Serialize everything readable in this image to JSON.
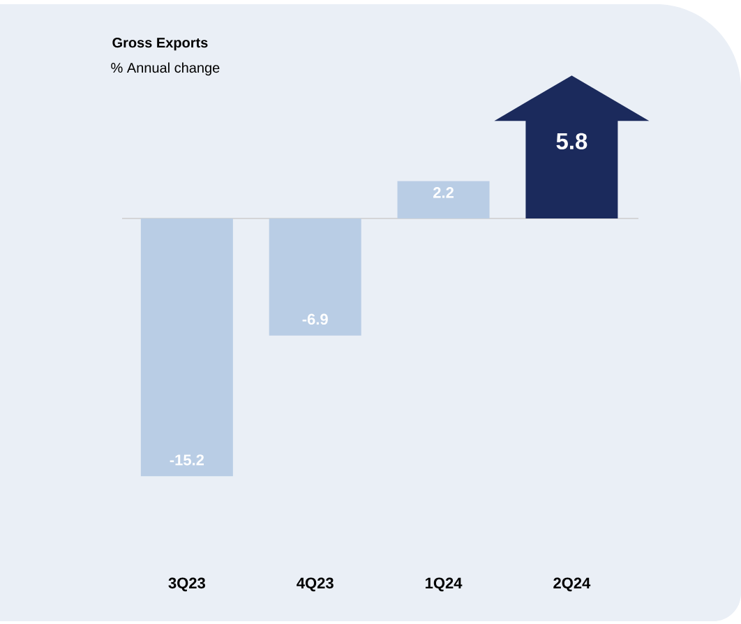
{
  "chart_data": {
    "type": "bar",
    "title": "Gross Exports",
    "subtitle": "% Annual change",
    "categories": [
      "3Q23",
      "4Q23",
      "1Q24",
      "2Q24"
    ],
    "values": [
      -15.2,
      -6.9,
      2.2,
      5.8
    ],
    "colors": [
      "#b9cde5",
      "#b9cde5",
      "#b9cde5",
      "#1b2a5c"
    ],
    "data_labels": true
  }
}
